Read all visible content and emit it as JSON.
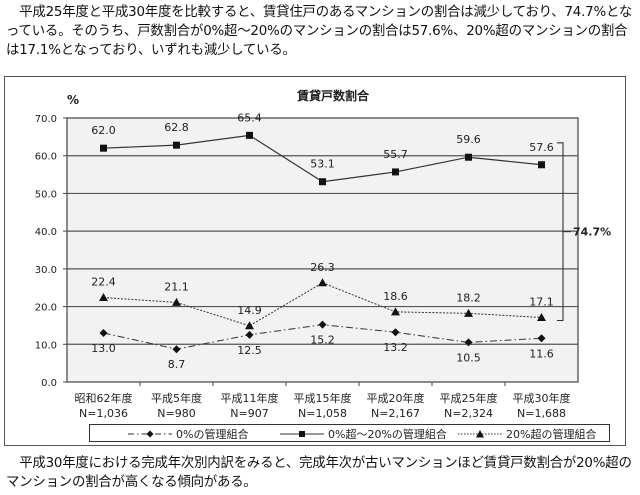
{
  "intro_text": "　平成25年度と平成30年度を比較すると、賃貸住戸のあるマンションの割合は減少しており、74.7%となっている。そのうち、戸数割合が0%超～20%のマンションの割合は57.6%、20%超のマンションの割合は17.1%となっており、いずれも減少している。",
  "outro_text": "　平成30年度における完成年次別内訳をみると、完成年次が古いマンションほど賃貸戸数割合が20%超のマンションの割合が高くなる傾向がある。",
  "chart_data": {
    "type": "line",
    "title": "賃貸戸数割合",
    "ylabel": "%",
    "xlabel": "",
    "ylim": [
      0,
      70
    ],
    "yticks": [
      "0.0",
      "10.0",
      "20.0",
      "30.0",
      "40.0",
      "50.0",
      "60.0",
      "70.0"
    ],
    "grid": true,
    "legend_position": "bottom",
    "categories": [
      "昭和62年度",
      "平成5年度",
      "平成11年度",
      "平成15年度",
      "平成20年度",
      "平成25年度",
      "平成30年度"
    ],
    "sample_sizes": [
      "N=1,036",
      "N=980",
      "N=907",
      "N=1,058",
      "N=2,167",
      "N=2,324",
      "N=1,688"
    ],
    "series": [
      {
        "name": "0%の管理組合",
        "marker": "diamond",
        "line": "dash-dot",
        "values": [
          13.0,
          8.7,
          12.5,
          15.2,
          13.2,
          10.5,
          11.6
        ],
        "labels": [
          "13.0",
          "8.7",
          "12.5",
          "15.2",
          "13.2",
          "10.5",
          "11.6"
        ]
      },
      {
        "name": "0%超～20%の管理組合",
        "marker": "square",
        "line": "solid",
        "values": [
          62.0,
          62.8,
          65.4,
          53.1,
          55.7,
          59.6,
          57.6
        ],
        "labels": [
          "62.0",
          "62.8",
          "65.4",
          "53.1",
          "55.7",
          "59.6",
          "57.6"
        ]
      },
      {
        "name": "20%超の管理組合",
        "marker": "triangle",
        "line": "dotted",
        "values": [
          22.4,
          21.1,
          14.9,
          26.3,
          18.6,
          18.2,
          17.1
        ],
        "labels": [
          "22.4",
          "21.1",
          "14.9",
          "26.3",
          "18.6",
          "18.2",
          "17.1"
        ]
      }
    ],
    "annotations": [
      {
        "text": "74.7%",
        "type": "bracket",
        "spans_series": [
          "0%超～20%の管理組合",
          "20%超の管理組合"
        ],
        "category": "平成30年度"
      }
    ]
  },
  "legend": {
    "items": [
      "0%の管理組合",
      "0%超～20%の管理組合",
      "20%超の管理組合"
    ]
  }
}
